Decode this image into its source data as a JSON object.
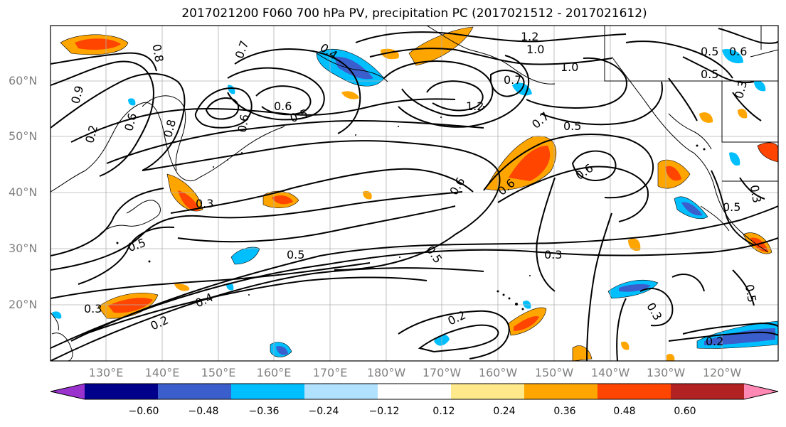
{
  "title": "2017021200 F060 700 hPa PV, precipitation PC (2017021512 - 2017021612)",
  "latitude_labels": [
    "60°N",
    "50°N",
    "40°N",
    "30°N",
    "20°N"
  ],
  "longitude_labels": [
    "130°E",
    "140°E",
    "150°E",
    "160°E",
    "170°E",
    "180°W",
    "170°W",
    "160°W",
    "150°W",
    "140°W",
    "130°W",
    "120°W"
  ],
  "contour_labels": [
    "0.8",
    "0.7",
    "0.4",
    "1.2",
    "1.0",
    "0.5",
    "0.5",
    "1.0",
    "0.6",
    "0.3",
    "0.9",
    "0.2",
    "0.6",
    "0.6",
    "0.8",
    "0.6",
    "0.5",
    "1.2",
    "0.7",
    "0.7",
    "0.5",
    "0.6",
    "0.6",
    "0.6",
    "0.3",
    "0.5",
    "0.5",
    "0.5",
    "0.5",
    "0.3",
    "0.3",
    "0.4",
    "0.2",
    "0.2",
    "0.3",
    "0.2",
    "0.5",
    "0.3"
  ],
  "colorbar": {
    "colors": [
      "#9a32cd",
      "#00008b",
      "#3a5fcd",
      "#00bfff",
      "#b0e2ff",
      "#ffffff",
      "#ffe98a",
      "#ffa500",
      "#ff4500",
      "#b22222",
      "#ff88b4"
    ],
    "tick_labels": [
      "−0.60",
      "−0.48",
      "−0.36",
      "−0.24",
      "−0.12",
      "0.12",
      "0.24",
      "0.36",
      "0.48",
      "0.60"
    ]
  }
}
